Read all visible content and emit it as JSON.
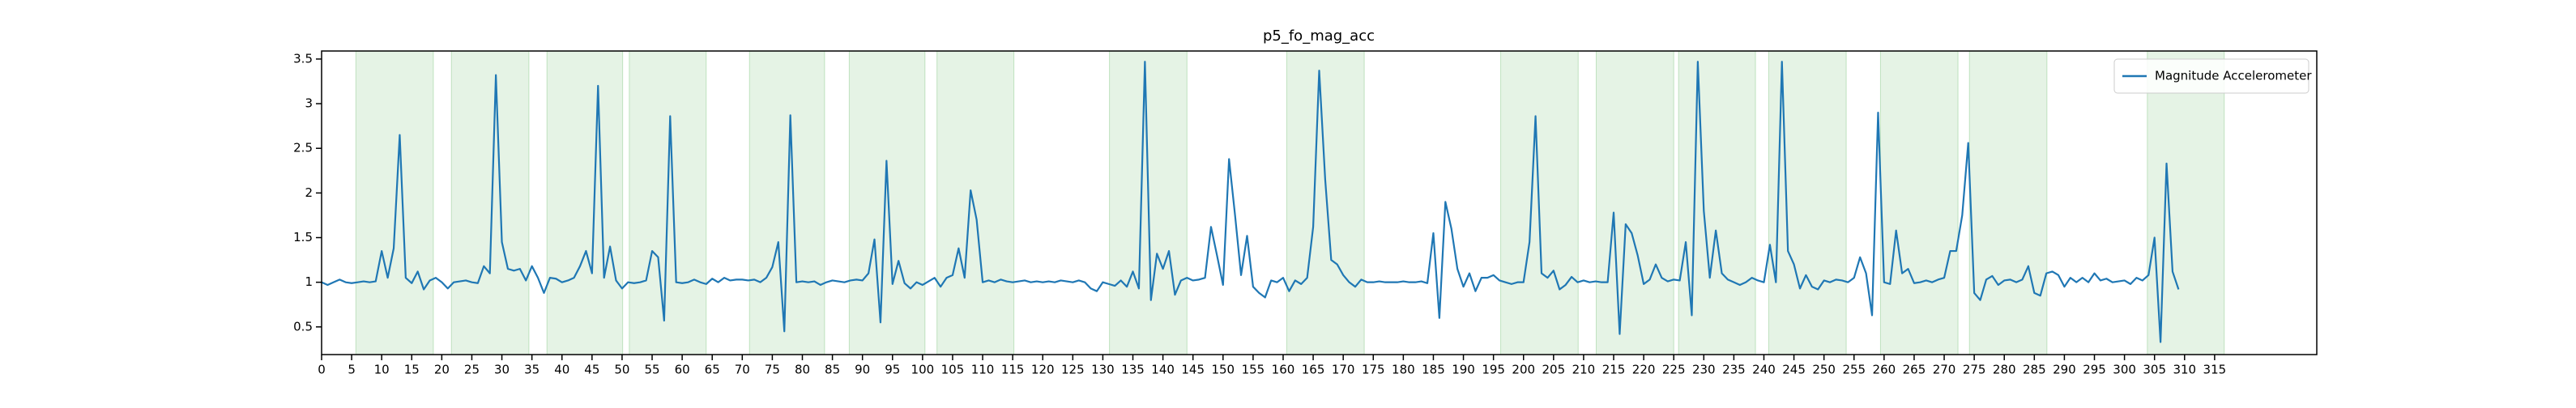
{
  "chart_data": {
    "type": "line",
    "title": "p5_fo_mag_acc",
    "series": [
      {
        "name": "Magnitude Accelerometer",
        "color": "#1f77b4",
        "values": [
          1.0,
          0.97,
          1.0,
          1.03,
          1.0,
          0.99,
          1.0,
          1.01,
          1.0,
          1.01,
          1.35,
          1.05,
          1.38,
          2.65,
          1.05,
          0.99,
          1.12,
          0.92,
          1.02,
          1.05,
          1.0,
          0.93,
          1.0,
          1.01,
          1.02,
          1.0,
          0.99,
          1.18,
          1.1,
          3.32,
          1.45,
          1.15,
          1.13,
          1.15,
          1.02,
          1.18,
          1.05,
          0.88,
          1.05,
          1.04,
          1.0,
          1.02,
          1.05,
          1.18,
          1.35,
          1.1,
          3.2,
          1.05,
          1.4,
          1.02,
          0.93,
          1.0,
          0.99,
          1.0,
          1.02,
          1.35,
          1.28,
          0.57,
          2.86,
          1.0,
          0.99,
          1.0,
          1.03,
          1.0,
          0.98,
          1.04,
          1.0,
          1.05,
          1.02,
          1.03,
          1.03,
          1.02,
          1.03,
          1.0,
          1.05,
          1.17,
          1.45,
          0.45,
          2.87,
          1.0,
          1.01,
          1.0,
          1.01,
          0.97,
          1.0,
          1.02,
          1.01,
          1.0,
          1.02,
          1.03,
          1.02,
          1.1,
          1.48,
          0.55,
          2.36,
          0.98,
          1.24,
          0.99,
          0.93,
          1.0,
          0.97,
          1.01,
          1.05,
          0.95,
          1.05,
          1.08,
          1.38,
          1.05,
          2.03,
          1.7,
          1.0,
          1.02,
          1.0,
          1.03,
          1.01,
          1.0,
          1.01,
          1.02,
          1.0,
          1.01,
          1.0,
          1.01,
          1.0,
          1.02,
          1.01,
          1.0,
          1.02,
          1.0,
          0.93,
          0.9,
          1.0,
          0.98,
          0.96,
          1.02,
          0.95,
          1.12,
          0.93,
          3.47,
          0.8,
          1.32,
          1.15,
          1.35,
          0.86,
          1.02,
          1.05,
          1.02,
          1.03,
          1.05,
          1.62,
          1.3,
          0.97,
          2.38,
          1.75,
          1.08,
          1.52,
          0.95,
          0.88,
          0.83,
          1.02,
          1.0,
          1.05,
          0.9,
          1.02,
          0.98,
          1.05,
          1.62,
          3.37,
          2.15,
          1.25,
          1.2,
          1.08,
          1.0,
          0.95,
          1.03,
          1.0,
          1.0,
          1.01,
          1.0,
          1.0,
          1.0,
          1.01,
          1.0,
          1.0,
          1.01,
          0.99,
          1.55,
          0.6,
          1.9,
          1.6,
          1.15,
          0.95,
          1.1,
          0.9,
          1.05,
          1.05,
          1.08,
          1.02,
          1.0,
          0.98,
          1.0,
          1.0,
          1.45,
          2.86,
          1.1,
          1.05,
          1.13,
          0.92,
          0.97,
          1.06,
          1.0,
          1.02,
          1.0,
          1.01,
          1.0,
          1.0,
          1.78,
          0.42,
          1.65,
          1.55,
          1.3,
          0.98,
          1.03,
          1.2,
          1.05,
          1.01,
          1.03,
          1.02,
          1.45,
          0.63,
          3.47,
          1.8,
          1.05,
          1.58,
          1.1,
          1.03,
          1.0,
          0.97,
          1.0,
          1.05,
          1.02,
          1.0,
          1.42,
          1.0,
          3.47,
          1.35,
          1.2,
          0.93,
          1.08,
          0.95,
          0.92,
          1.02,
          1.0,
          1.03,
          1.02,
          1.0,
          1.05,
          1.28,
          1.1,
          0.63,
          2.9,
          1.0,
          0.98,
          1.58,
          1.1,
          1.15,
          0.99,
          1.0,
          1.02,
          1.0,
          1.03,
          1.05,
          1.35,
          1.35,
          1.75,
          2.56,
          0.88,
          0.8,
          1.03,
          1.07,
          0.97,
          1.02,
          1.03,
          1.0,
          1.03,
          1.18,
          0.88,
          0.85,
          1.1,
          1.12,
          1.08,
          0.95,
          1.05,
          1.0,
          1.05,
          1.0,
          1.1,
          1.02,
          1.04,
          1.0,
          1.01,
          1.02,
          0.98,
          1.05,
          1.02,
          1.08,
          1.5,
          0.33,
          2.33,
          1.12,
          0.92
        ]
      }
    ],
    "spans": [
      [
        5.7,
        18.6
      ],
      [
        21.6,
        34.5
      ],
      [
        37.5,
        50.1
      ],
      [
        51.2,
        64.0
      ],
      [
        71.2,
        83.7
      ],
      [
        87.8,
        100.4
      ],
      [
        102.4,
        115.2
      ],
      [
        131.1,
        144.0
      ],
      [
        160.6,
        173.5
      ],
      [
        196.2,
        209.1
      ],
      [
        212.1,
        225.0
      ],
      [
        225.8,
        238.6
      ],
      [
        240.8,
        253.7
      ],
      [
        259.4,
        272.3
      ],
      [
        274.2,
        287.1
      ],
      [
        303.8,
        316.6
      ]
    ],
    "span_color": "#2ca02c",
    "xlim": [
      0,
      332
    ],
    "xticks": [
      0,
      5,
      10,
      15,
      20,
      25,
      30,
      35,
      40,
      45,
      50,
      55,
      60,
      65,
      70,
      75,
      80,
      85,
      90,
      95,
      100,
      105,
      110,
      115,
      120,
      125,
      130,
      135,
      140,
      145,
      150,
      155,
      160,
      165,
      170,
      175,
      180,
      185,
      190,
      195,
      200,
      205,
      210,
      215,
      220,
      225,
      230,
      235,
      240,
      245,
      250,
      255,
      260,
      265,
      270,
      275,
      280,
      285,
      290,
      295,
      300,
      305,
      310,
      315
    ],
    "ylim": [
      0.19,
      3.59
    ],
    "yticks": [
      0.5,
      1.0,
      1.5,
      2.0,
      2.5,
      3.0,
      3.5
    ],
    "legend": "upper right"
  }
}
